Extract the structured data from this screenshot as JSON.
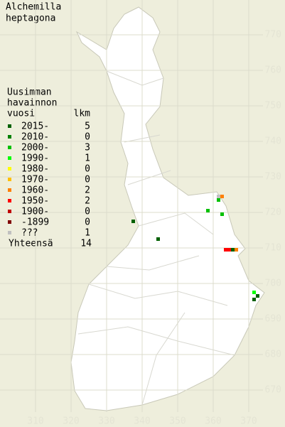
{
  "title": [
    "Alchemilla",
    "heptagona"
  ],
  "legend": {
    "header": [
      "Uusimman",
      "havainnon",
      "vuosi"
    ],
    "count_header": "lkm",
    "rows": [
      {
        "label": "2015-",
        "count": 5,
        "color": "#006000",
        "squares": [
          [
            337,
            717
          ],
          [
            344,
            712
          ],
          [
            365,
            709
          ],
          [
            371,
            695
          ],
          [
            372,
            696
          ]
        ]
      },
      {
        "label": "2010-",
        "count": 0,
        "color": "#008000",
        "squares": []
      },
      {
        "label": "2000-",
        "count": 3,
        "color": "#00c000",
        "squares": [
          [
            358,
            720
          ],
          [
            361,
            723
          ],
          [
            362,
            719
          ]
        ]
      },
      {
        "label": "1990-",
        "count": 1,
        "color": "#00ff00",
        "squares": [
          [
            371,
            697
          ]
        ]
      },
      {
        "label": "1980-",
        "count": 0,
        "color": "#ffff00",
        "squares": []
      },
      {
        "label": "1970-",
        "count": 0,
        "color": "#ffc000",
        "squares": []
      },
      {
        "label": "1960-",
        "count": 2,
        "color": "#ff8000",
        "squares": [
          [
            362,
            724
          ],
          [
            366,
            709
          ]
        ]
      },
      {
        "label": "1950-",
        "count": 2,
        "color": "#ff0000",
        "squares": [
          [
            363,
            709
          ],
          [
            364,
            709
          ]
        ]
      },
      {
        "label": "1900-",
        "count": 0,
        "color": "#c00000",
        "squares": []
      },
      {
        "label": "-1899",
        "count": 0,
        "color": "#800000",
        "squares": []
      },
      {
        "label": "???",
        "count": 1,
        "color": "#c0c0c0",
        "squares": [
          [
            361,
            724
          ]
        ]
      }
    ],
    "total_label": "Yhteensä",
    "total": 14
  },
  "x_ticks": [
    310,
    320,
    330,
    340,
    350,
    360,
    370
  ],
  "y_ticks": [
    670,
    680,
    690,
    700,
    710,
    720,
    730,
    740,
    750,
    760,
    770
  ]
}
